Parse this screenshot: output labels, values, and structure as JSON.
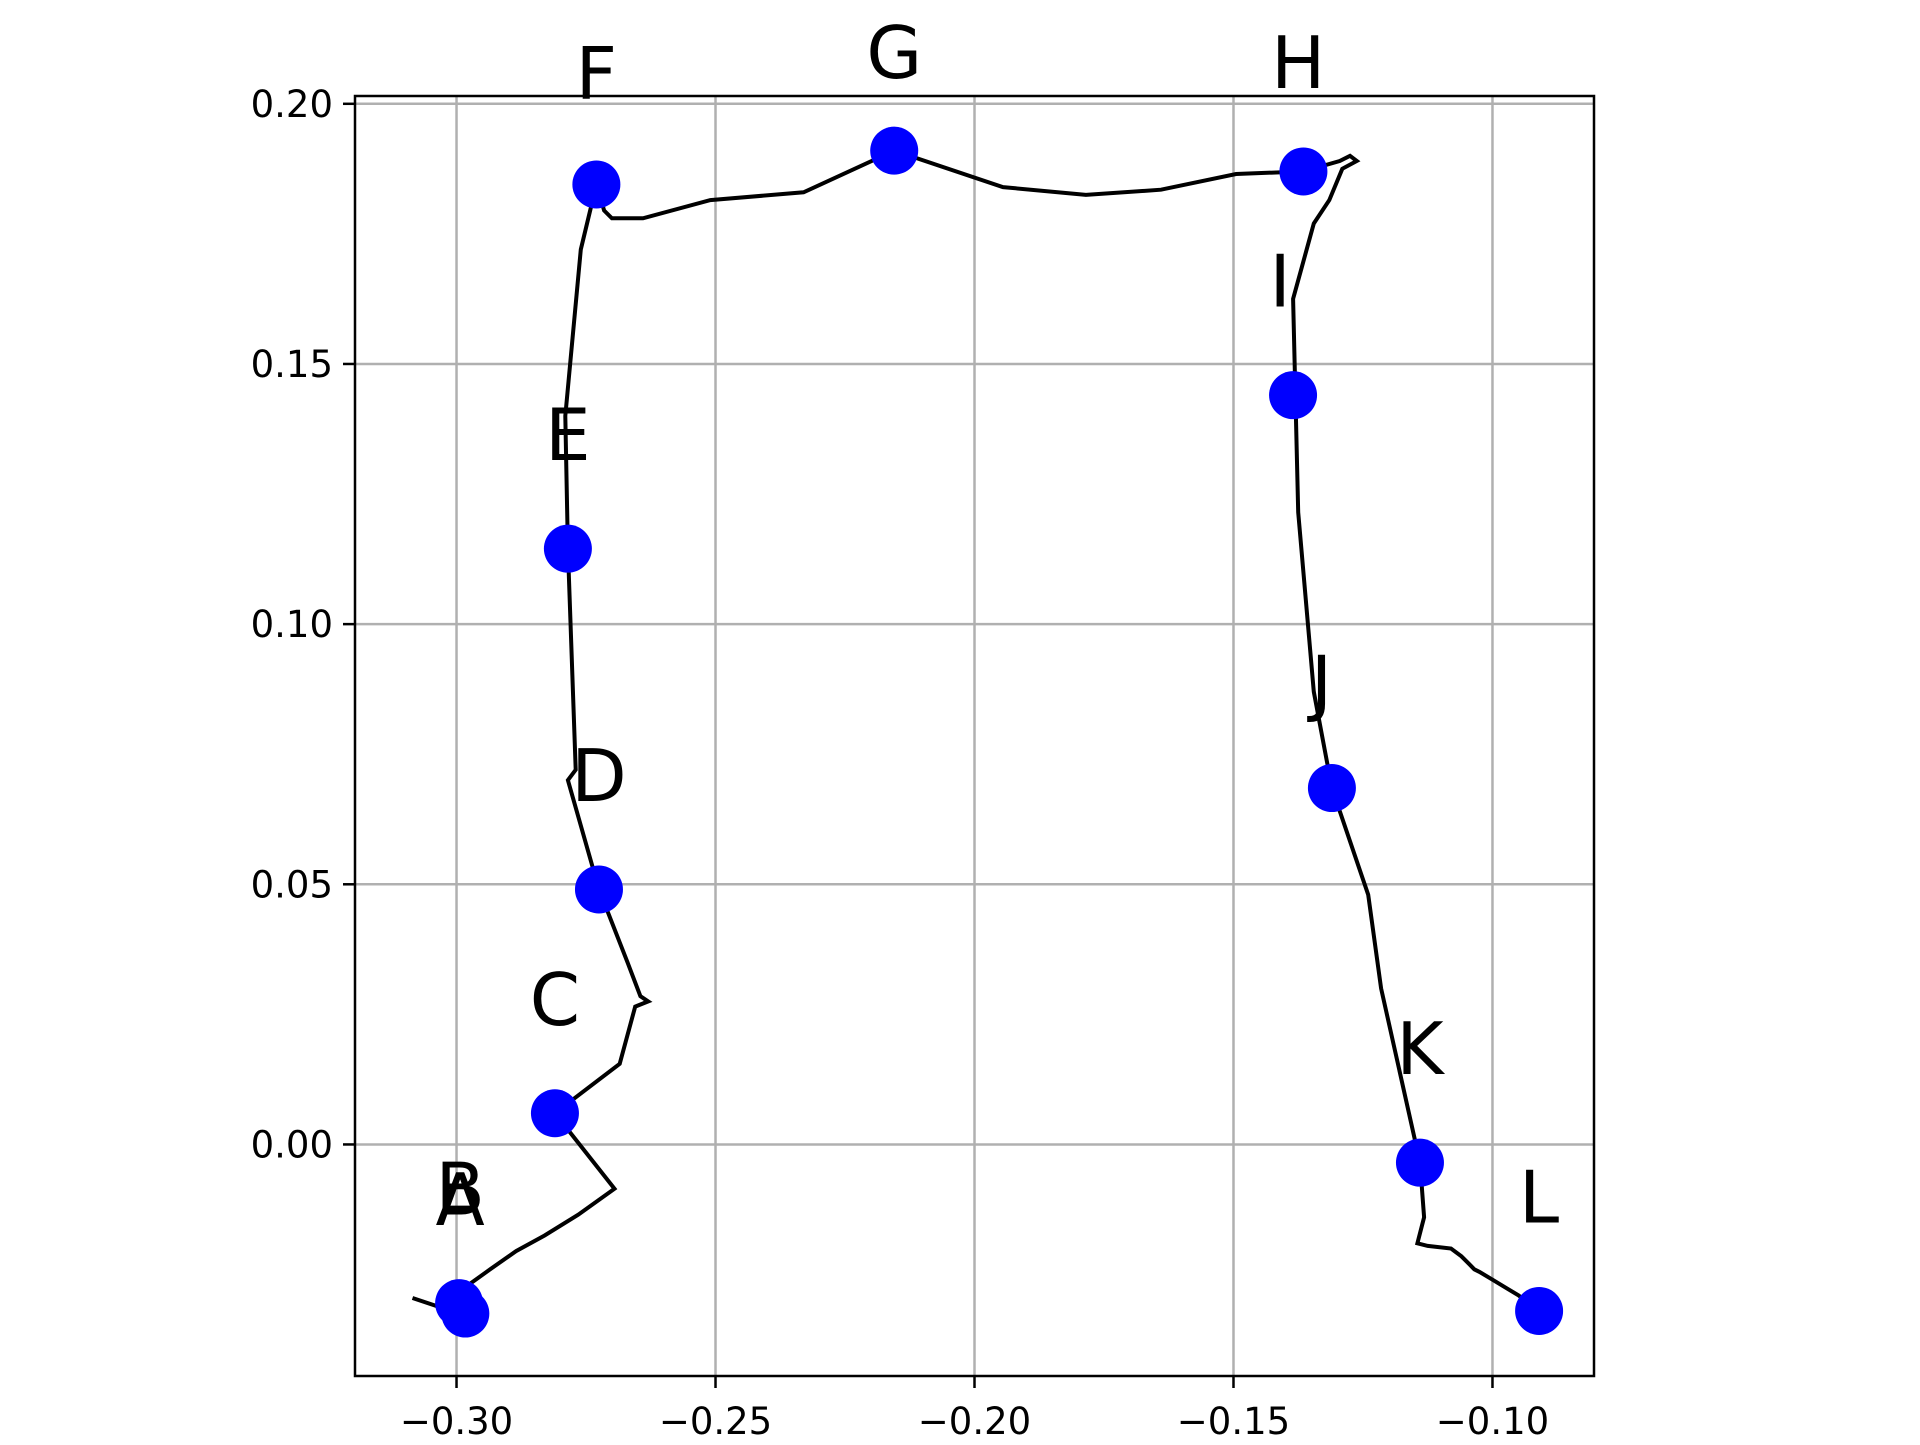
{
  "chart_data": {
    "type": "scatter",
    "title": "",
    "xlabel": "",
    "ylabel": "",
    "xlim": [
      -0.3196,
      -0.0804
    ],
    "ylim": [
      -0.0445,
      0.2015
    ],
    "grid": true,
    "legend": "none",
    "x_ticks": [
      -0.3,
      -0.25,
      -0.2,
      -0.15,
      -0.1
    ],
    "x_tick_labels": [
      "−0.30",
      "−0.25",
      "−0.20",
      "−0.15",
      "−0.10"
    ],
    "y_ticks": [
      0.0,
      0.05,
      0.1,
      0.15,
      0.2
    ],
    "y_tick_labels": [
      "0.00",
      "0.05",
      "0.10",
      "0.15",
      "0.20"
    ],
    "marker_color": "#0000ff",
    "line_color": "#000000",
    "points": [
      {
        "label": "A",
        "x": -0.2983,
        "y": -0.0325,
        "lx": -0.2993,
        "ly": -0.0155
      },
      {
        "label": "B",
        "x": -0.2995,
        "y": -0.0305,
        "lx": -0.2993,
        "ly": -0.0135
      },
      {
        "label": "C",
        "x": -0.281,
        "y": 0.006,
        "lx": -0.281,
        "ly": 0.023
      },
      {
        "label": "D",
        "x": -0.2725,
        "y": 0.049,
        "lx": -0.2725,
        "ly": 0.066
      },
      {
        "label": "E",
        "x": -0.2785,
        "y": 0.1145,
        "lx": -0.2785,
        "ly": 0.1315
      },
      {
        "label": "F",
        "x": -0.273,
        "y": 0.1845,
        "lx": -0.273,
        "ly": 0.201
      },
      {
        "label": "G",
        "x": -0.2155,
        "y": 0.191,
        "lx": -0.2155,
        "ly": 0.205
      },
      {
        "label": "H",
        "x": -0.1365,
        "y": 0.187,
        "lx": -0.1375,
        "ly": 0.203
      },
      {
        "label": "I",
        "x": -0.1385,
        "y": 0.144,
        "lx": -0.141,
        "ly": 0.161
      },
      {
        "label": "J",
        "x": -0.131,
        "y": 0.0685,
        "lx": -0.133,
        "ly": 0.084
      },
      {
        "label": "K",
        "x": -0.114,
        "y": -0.0035,
        "lx": -0.114,
        "ly": 0.0135
      },
      {
        "label": "L",
        "x": -0.091,
        "y": -0.032,
        "lx": -0.091,
        "ly": -0.015
      }
    ],
    "trace": [
      [
        -0.3085,
        -0.0295
      ],
      [
        -0.301,
        -0.032
      ],
      [
        -0.2985,
        -0.0335
      ],
      [
        -0.3,
        -0.0268
      ],
      [
        -0.298,
        -0.0272
      ],
      [
        -0.2935,
        -0.024
      ],
      [
        -0.2885,
        -0.0205
      ],
      [
        -0.283,
        -0.0175
      ],
      [
        -0.2765,
        -0.0135
      ],
      [
        -0.2695,
        -0.0085
      ],
      [
        -0.281,
        0.006
      ],
      [
        -0.2685,
        0.0155
      ],
      [
        -0.2655,
        0.0265
      ],
      [
        -0.263,
        0.0275
      ],
      [
        -0.2645,
        0.0285
      ],
      [
        -0.267,
        0.035
      ],
      [
        -0.2725,
        0.049
      ],
      [
        -0.2785,
        0.07
      ],
      [
        -0.277,
        0.072
      ],
      [
        -0.2785,
        0.1145
      ],
      [
        -0.279,
        0.14
      ],
      [
        -0.276,
        0.172
      ],
      [
        -0.273,
        0.1845
      ],
      [
        -0.2715,
        0.1795
      ],
      [
        -0.27,
        0.178
      ],
      [
        -0.264,
        0.178
      ],
      [
        -0.251,
        0.1815
      ],
      [
        -0.233,
        0.183
      ],
      [
        -0.2155,
        0.191
      ],
      [
        -0.1945,
        0.184
      ],
      [
        -0.1785,
        0.1825
      ],
      [
        -0.164,
        0.1835
      ],
      [
        -0.1495,
        0.1865
      ],
      [
        -0.1365,
        0.187
      ],
      [
        -0.1295,
        0.189
      ],
      [
        -0.1275,
        0.19
      ],
      [
        -0.1262,
        0.189
      ],
      [
        -0.129,
        0.1875
      ],
      [
        -0.1315,
        0.1815
      ],
      [
        -0.1345,
        0.177
      ],
      [
        -0.1385,
        0.1625
      ],
      [
        -0.1375,
        0.1215
      ],
      [
        -0.1345,
        0.087
      ],
      [
        -0.131,
        0.0685
      ],
      [
        -0.124,
        0.048
      ],
      [
        -0.1215,
        0.03
      ],
      [
        -0.114,
        -0.0035
      ],
      [
        -0.1132,
        -0.014
      ],
      [
        -0.1145,
        -0.019
      ],
      [
        -0.1125,
        -0.0195
      ],
      [
        -0.108,
        -0.02
      ],
      [
        -0.106,
        -0.0215
      ],
      [
        -0.1045,
        -0.023
      ],
      [
        -0.1035,
        -0.024
      ],
      [
        -0.1025,
        -0.0245
      ],
      [
        -0.1,
        -0.026
      ],
      [
        -0.097,
        -0.0278
      ],
      [
        -0.095,
        -0.029
      ],
      [
        -0.091,
        -0.032
      ]
    ]
  }
}
